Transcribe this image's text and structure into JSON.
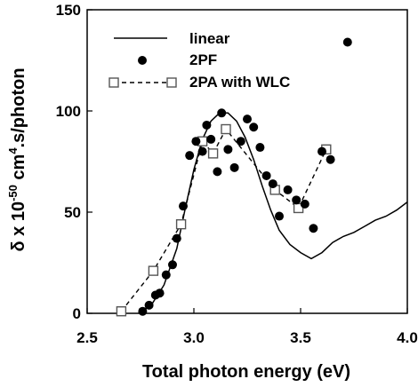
{
  "chart_data": {
    "type": "line",
    "title": "",
    "xlabel": "Total photon energy (eV)",
    "ylabel_parts": {
      "pre": "δ x  10",
      "exp1": "-50",
      "mid": " cm",
      "exp2": "4",
      "post": ".s/photon"
    },
    "xlim": [
      2.5,
      4.0
    ],
    "ylim": [
      0,
      150
    ],
    "xticks": [
      "2.5",
      "3.0",
      "3.5",
      "4.0"
    ],
    "yticks": [
      "0",
      "50",
      "100",
      "150"
    ],
    "legend_position": "top-left",
    "series": [
      {
        "name": "linear",
        "style": "solid-line",
        "x": [
          2.74,
          2.8,
          2.86,
          2.92,
          2.96,
          3.0,
          3.04,
          3.08,
          3.12,
          3.16,
          3.2,
          3.24,
          3.28,
          3.32,
          3.36,
          3.4,
          3.45,
          3.5,
          3.55,
          3.6,
          3.65,
          3.7,
          3.75,
          3.8,
          3.85,
          3.9,
          3.95,
          4.0
        ],
        "y": [
          0,
          4,
          14,
          32,
          52,
          71,
          86,
          95,
          99,
          99,
          95,
          87,
          76,
          63,
          51,
          41,
          34,
          30,
          27,
          30,
          35,
          38,
          40,
          43,
          46,
          48,
          51,
          55
        ]
      },
      {
        "name": "2PF",
        "style": "filled-circles",
        "x": [
          2.76,
          2.79,
          2.82,
          2.84,
          2.87,
          2.9,
          2.92,
          2.95,
          2.98,
          3.01,
          3.04,
          3.06,
          3.08,
          3.11,
          3.13,
          3.16,
          3.19,
          3.22,
          3.25,
          3.28,
          3.31,
          3.34,
          3.37,
          3.4,
          3.44,
          3.48,
          3.52,
          3.56,
          3.6,
          3.64,
          3.72
        ],
        "y": [
          1,
          4,
          9,
          10,
          19,
          24,
          37,
          53,
          78,
          85,
          80,
          93,
          86,
          70,
          99,
          81,
          72,
          85,
          96,
          92,
          82,
          68,
          64,
          48,
          61,
          56,
          54,
          42,
          80,
          76,
          134
        ]
      },
      {
        "name": "2PA with WLC",
        "style": "dashed-line-open-squares",
        "x": [
          2.66,
          2.81,
          2.94,
          3.04,
          3.09,
          3.15,
          3.38,
          3.49,
          3.62
        ],
        "y": [
          1,
          21,
          44,
          85,
          79,
          91,
          61,
          52,
          81
        ]
      }
    ]
  }
}
